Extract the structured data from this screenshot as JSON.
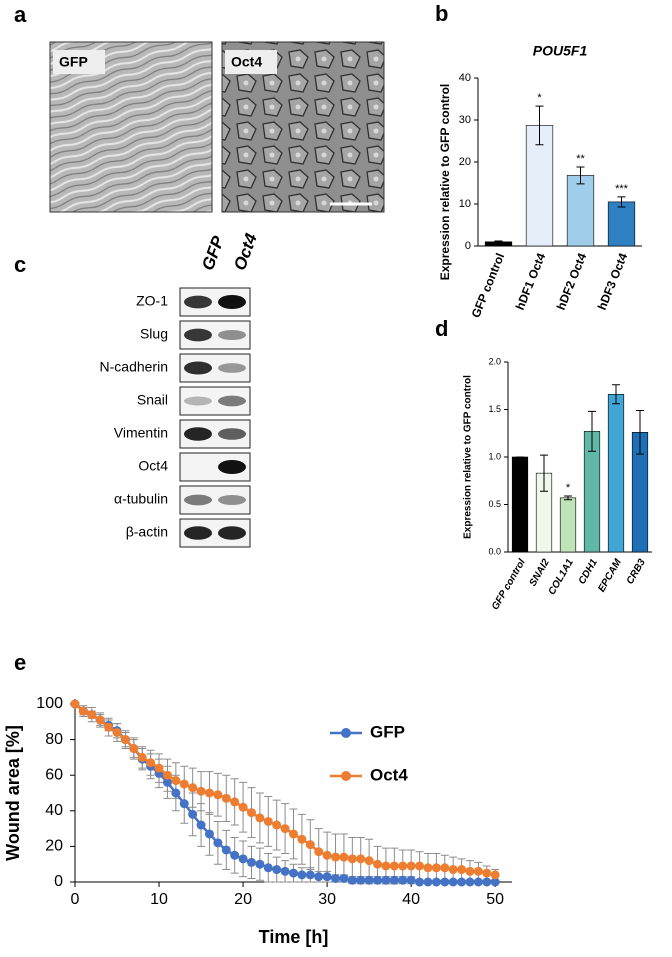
{
  "panels": {
    "a": {
      "label": "a",
      "images": [
        "GFP",
        "Oct4"
      ]
    },
    "c": {
      "label": "c",
      "columns": [
        "GFP",
        "Oct4"
      ],
      "rows": [
        "ZO-1",
        "Slug",
        "N-cadherin",
        "Snail",
        "Vimentin",
        "Oct4",
        "α-tubulin",
        "β-actin"
      ]
    }
  },
  "chart_data": [
    {
      "type": "bar",
      "panel": "b",
      "title": "POU5F1",
      "ylabel": "Expression relative to GFP control",
      "categories": [
        "GFP control",
        "hDF1 Oct4",
        "hDF2 Oct4",
        "hDF3 Oct4"
      ],
      "values": [
        1,
        28.7,
        16.8,
        10.5
      ],
      "errors": [
        0.2,
        4.6,
        2,
        1.2
      ],
      "annotations": [
        null,
        "*",
        "**",
        "***"
      ],
      "colors": [
        "#000000",
        "#e6eef9",
        "#9fcdea",
        "#2f80c3"
      ],
      "ylim": [
        0,
        40
      ],
      "yticks": [
        0,
        10,
        20,
        30,
        40
      ]
    },
    {
      "type": "bar",
      "panel": "d",
      "ylabel": "Expression relative to GFP control",
      "categories": [
        "GFP control",
        "SNAI2",
        "COL1A1",
        "CDH1",
        "EPCAM",
        "CRB3"
      ],
      "values": [
        1,
        0.83,
        0.57,
        1.27,
        1.66,
        1.26
      ],
      "errors": [
        0,
        0.19,
        0.02,
        0.21,
        0.1,
        0.23
      ],
      "annotations": [
        null,
        null,
        "*",
        null,
        null,
        null
      ],
      "colors": [
        "#000000",
        "#eff8ea",
        "#bfe4b8",
        "#62b8a8",
        "#41a6d6",
        "#1e6fb5"
      ],
      "ylim": [
        0,
        2
      ],
      "yticks": [
        {
          "value": 0,
          "label": "0.0"
        },
        {
          "value": 0.5,
          "label": "0.5"
        },
        {
          "value": 1,
          "label": "1.0"
        },
        {
          "value": 1.5,
          "label": "1.5"
        },
        {
          "value": 2,
          "label": "2.0"
        }
      ]
    },
    {
      "type": "line",
      "panel": "e",
      "xlabel": "Time [h]",
      "ylabel": "Wound area [%]",
      "x": [
        0,
        1,
        2,
        3,
        4,
        5,
        6,
        7,
        8,
        9,
        10,
        11,
        12,
        13,
        14,
        15,
        16,
        17,
        18,
        19,
        20,
        21,
        22,
        23,
        24,
        25,
        26,
        27,
        28,
        29,
        30,
        31,
        32,
        33,
        34,
        35,
        36,
        37,
        38,
        39,
        40,
        41,
        42,
        43,
        44,
        45,
        46,
        47,
        48,
        49,
        50
      ],
      "series": [
        {
          "name": "GFP",
          "color": "#4472c4",
          "values": [
            100,
            96,
            94,
            91,
            88,
            85,
            80,
            75,
            69,
            65,
            61,
            56,
            50,
            44,
            38,
            32,
            27,
            22,
            18,
            15,
            13,
            11,
            10,
            8,
            7,
            6,
            5,
            4,
            4,
            3,
            3,
            2,
            2,
            1,
            1,
            1,
            1,
            1,
            1,
            1,
            1,
            0,
            0,
            0,
            0,
            0,
            0,
            0,
            0,
            0,
            0
          ],
          "errors": [
            0,
            2,
            2,
            3,
            3,
            4,
            4,
            5,
            6,
            7,
            8,
            9,
            10,
            11,
            12,
            12,
            12,
            12,
            11,
            10,
            10,
            9,
            9,
            8,
            7,
            6,
            5,
            4,
            4,
            3,
            3,
            2,
            2,
            2,
            2,
            2,
            2,
            2,
            2,
            2,
            2,
            1,
            1,
            1,
            1,
            1,
            1,
            1,
            1,
            1,
            1
          ]
        },
        {
          "name": "Oct4",
          "color": "#ed7d31",
          "values": [
            100,
            96,
            94,
            91,
            87,
            84,
            80,
            75,
            70,
            67,
            64,
            60,
            57,
            55,
            53,
            51,
            50,
            49,
            47,
            45,
            42,
            39,
            36,
            34,
            32,
            30,
            27,
            24,
            21,
            17,
            15,
            14,
            14,
            13,
            13,
            12,
            10,
            9,
            9,
            9,
            9,
            9,
            8,
            8,
            8,
            7,
            7,
            6,
            6,
            5,
            4
          ],
          "errors": [
            0,
            3,
            4,
            4,
            5,
            5,
            5,
            6,
            6,
            7,
            8,
            9,
            10,
            10,
            11,
            11,
            12,
            12,
            13,
            13,
            14,
            14,
            14,
            14,
            14,
            14,
            14,
            14,
            14,
            13,
            13,
            13,
            13,
            12,
            12,
            12,
            10,
            10,
            10,
            9,
            9,
            8,
            8,
            8,
            7,
            7,
            6,
            6,
            5,
            4,
            3
          ]
        }
      ],
      "xlim": [
        0,
        52
      ],
      "xticks": [
        0,
        10,
        20,
        30,
        40,
        50
      ],
      "ylim": [
        0,
        100
      ],
      "yticks": [
        0,
        20,
        40,
        60,
        80,
        100
      ]
    }
  ]
}
